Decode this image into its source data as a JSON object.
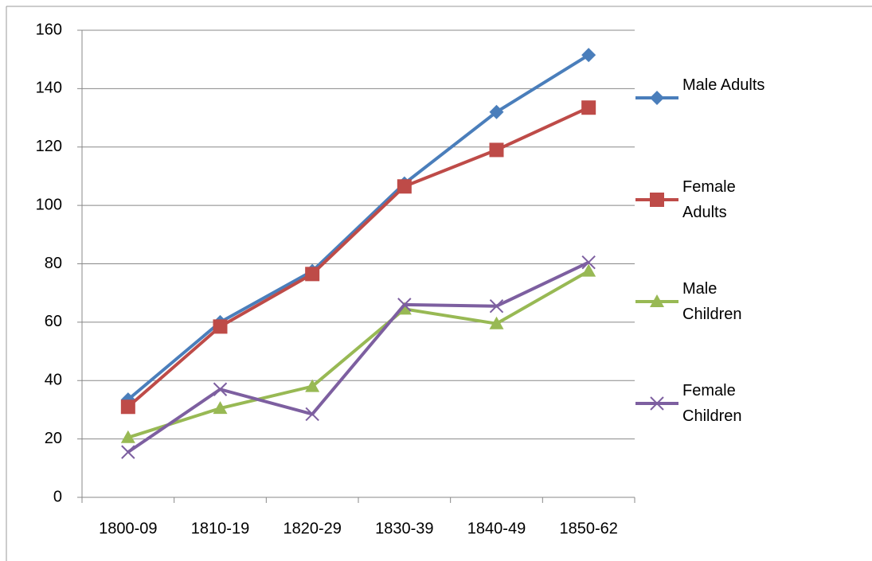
{
  "chart_data": {
    "type": "line",
    "categories": [
      "1800-09",
      "1810-19",
      "1820-29",
      "1830-39",
      "1840-49",
      "1850-62"
    ],
    "series": [
      {
        "name": "Male Adults",
        "color": "#4a7ebb",
        "marker": "diamond",
        "values": [
          33.5,
          60,
          77.5,
          107.5,
          132,
          151.5
        ]
      },
      {
        "name": "Female Adults",
        "color": "#be4b48",
        "marker": "square",
        "values": [
          31,
          58.5,
          76.5,
          106.5,
          119,
          133.5
        ]
      },
      {
        "name": "Male Children",
        "color": "#98b954",
        "marker": "triangle",
        "values": [
          20.5,
          30.5,
          38,
          64.5,
          59.5,
          77.5
        ]
      },
      {
        "name": "Female Children",
        "color": "#7d5fa0",
        "marker": "x",
        "values": [
          15.5,
          37,
          28.5,
          66,
          65.5,
          80.5
        ]
      }
    ],
    "ylim": [
      0,
      160
    ],
    "yticks": [
      0,
      20,
      40,
      60,
      80,
      100,
      120,
      140,
      160
    ],
    "grid": true,
    "legend": "right"
  }
}
